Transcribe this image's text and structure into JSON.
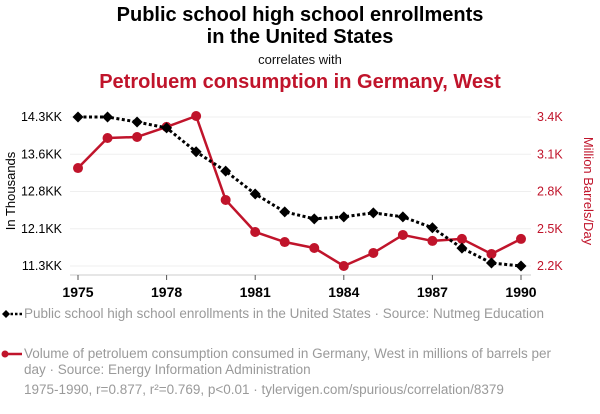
{
  "header": {
    "title_line1": "Public school high school enrollments",
    "title_line2": "in the United States",
    "subtitle": "correlates with",
    "title2": "Petroluem consumption in Germany, West"
  },
  "legend": [
    {
      "label": "Public school high school enrollments in the United States · Source: Nutmeg Education",
      "color": "#000000",
      "marker": "diamond",
      "dash": "dotted"
    },
    {
      "label": "Volume of petroluem consumption consumed in Germany, West in millions of barrels per day · Source: Energy Information Administration",
      "color": "#c0142b",
      "marker": "circle",
      "dash": "solid"
    }
  ],
  "footer": "1975-1990, r=0.877, r²=0.769, p<0.01 · tylervigen.com/spurious/correlation/8379",
  "chart_data": {
    "type": "line",
    "title": "Public school high school enrollments in the United States correlates with Petroluem consumption in Germany, West",
    "x": [
      1975,
      1976,
      1977,
      1978,
      1979,
      1980,
      1981,
      1982,
      1983,
      1984,
      1985,
      1986,
      1987,
      1988,
      1989,
      1990
    ],
    "xticks": [
      1975,
      1978,
      1981,
      1984,
      1987,
      1990
    ],
    "xtick_labels": [
      "1975",
      "1978",
      "1981",
      "1984",
      "1987",
      "1990"
    ],
    "ylabel_left": "In Thousands",
    "ylabel_right": "Million Barrels/Day",
    "ylim_left": [
      11300,
      14300
    ],
    "yticks_left": [
      14300,
      13550,
      12800,
      12050,
      11300
    ],
    "ytick_labels_left": [
      "14.3KK",
      "13.6KK",
      "12.8KK",
      "12.1KK",
      "11.3KK"
    ],
    "ylim_right": [
      2200,
      3400
    ],
    "yticks_right": [
      3400,
      3100,
      2800,
      2500,
      2200
    ],
    "ytick_labels_right": [
      "3.4K",
      "3.1K",
      "2.8K",
      "2.5K",
      "2.2K"
    ],
    "grid": true,
    "legend_position": "bottom",
    "series": [
      {
        "name": "Public school high school enrollments in the United States",
        "axis": "left",
        "color": "#000000",
        "values": [
          14300,
          14300,
          14200,
          14080,
          13600,
          13210,
          12750,
          12390,
          12250,
          12290,
          12370,
          12290,
          12070,
          11660,
          11360,
          11300
        ]
      },
      {
        "name": "Volume of petroluem consumption consumed in Germany, West",
        "axis": "right",
        "color": "#c0142b",
        "values": [
          2989,
          3231,
          3239,
          3320,
          3408,
          2732,
          2474,
          2393,
          2345,
          2200,
          2305,
          2450,
          2402,
          2418,
          2297,
          2418
        ]
      }
    ]
  }
}
